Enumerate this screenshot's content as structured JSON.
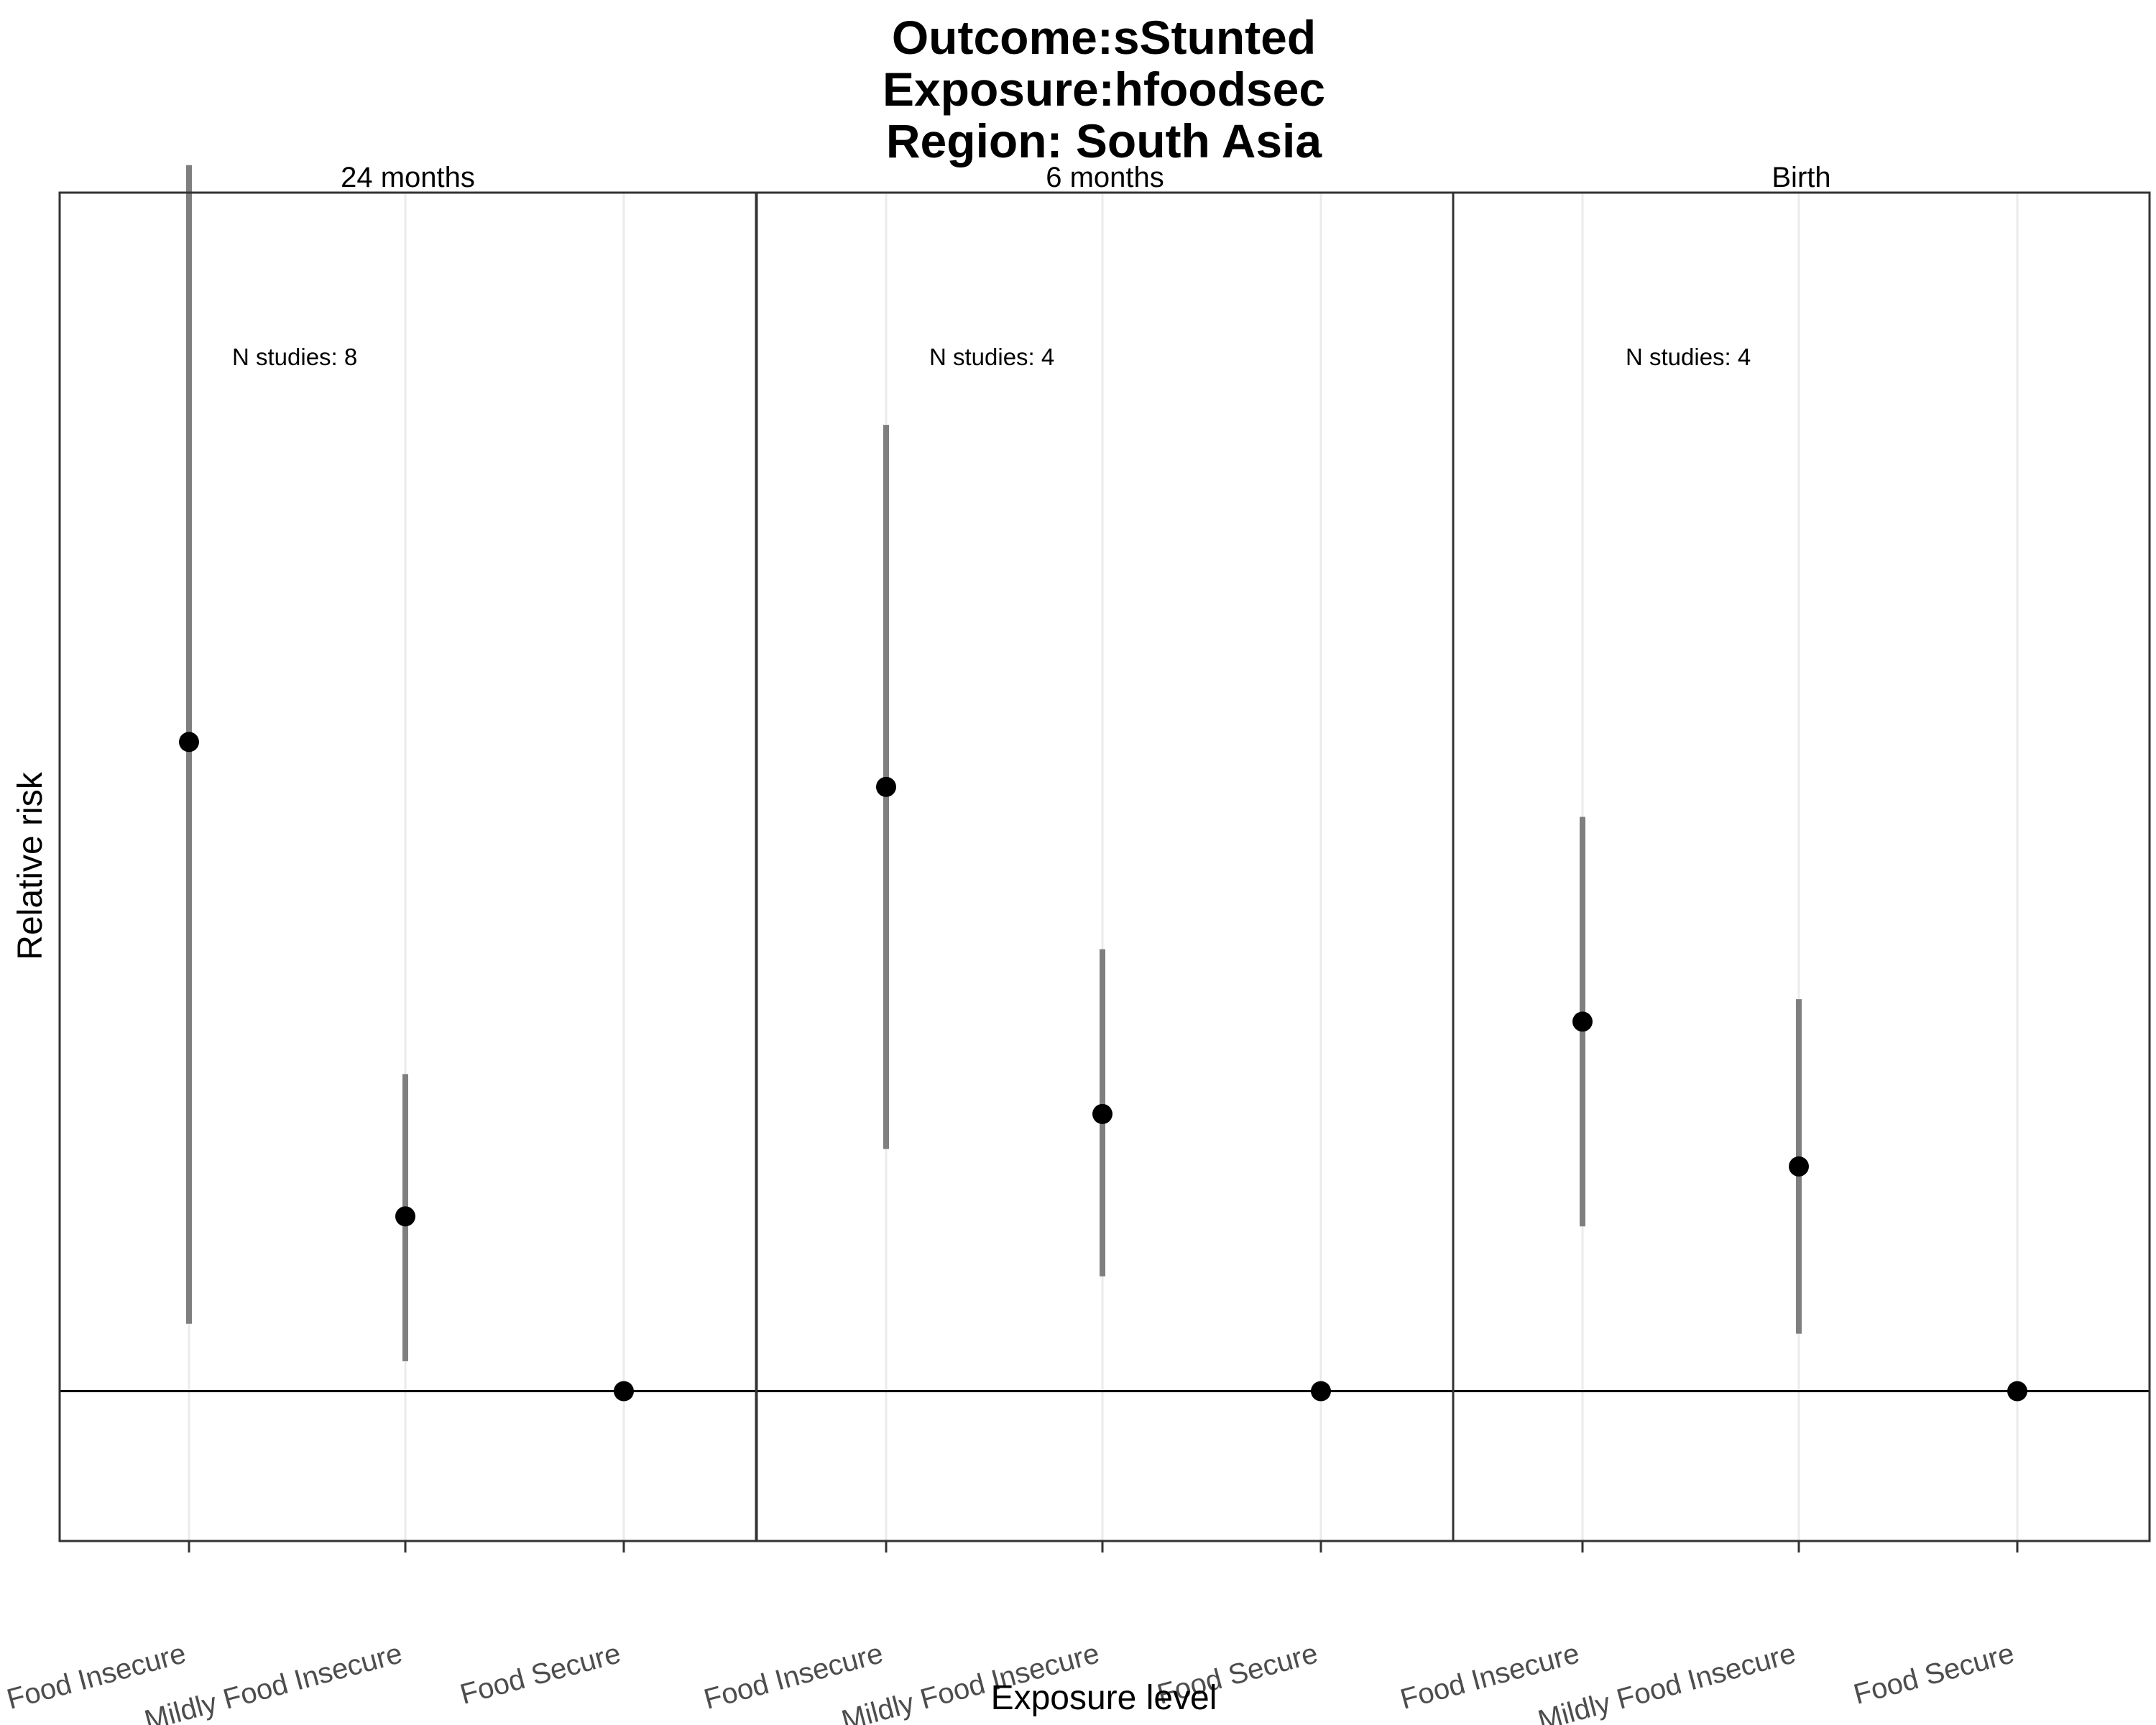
{
  "chart_data": {
    "type": "scatter",
    "title_lines": [
      "Outcome:sStunted",
      "Exposure:hfoodsec",
      "Region: South Asia"
    ],
    "xlabel": "Exposure level",
    "ylabel": "Relative risk",
    "categories": [
      "Food Insecure",
      "Mildly Food Insecure",
      "Food Secure"
    ],
    "reference_line": 1,
    "ylim": [
      0.94,
      1.48
    ],
    "y_tick_labels_shown": false,
    "grid": "vertical major lines only",
    "panels": [
      {
        "label": "24 months",
        "annotation": "N studies: 8",
        "points": [
          {
            "category": "Food Insecure",
            "estimate": 1.26,
            "ci_lower": 1.027,
            "ci_upper": 1.491
          },
          {
            "category": "Mildly Food Insecure",
            "estimate": 1.07,
            "ci_lower": 1.012,
            "ci_upper": 1.127
          },
          {
            "category": "Food Secure",
            "estimate": 1.0,
            "ci_lower": 1.0,
            "ci_upper": 1.0
          }
        ]
      },
      {
        "label": "6 months",
        "annotation": "N studies: 4",
        "points": [
          {
            "category": "Food Insecure",
            "estimate": 1.242,
            "ci_lower": 1.097,
            "ci_upper": 1.387
          },
          {
            "category": "Mildly Food Insecure",
            "estimate": 1.111,
            "ci_lower": 1.046,
            "ci_upper": 1.177
          },
          {
            "category": "Food Secure",
            "estimate": 1.0,
            "ci_lower": 1.0,
            "ci_upper": 1.0
          }
        ]
      },
      {
        "label": "Birth",
        "annotation": "N studies: 4",
        "points": [
          {
            "category": "Food Insecure",
            "estimate": 1.148,
            "ci_lower": 1.066,
            "ci_upper": 1.23
          },
          {
            "category": "Mildly Food Insecure",
            "estimate": 1.09,
            "ci_lower": 1.023,
            "ci_upper": 1.157
          },
          {
            "category": "Food Secure",
            "estimate": 1.0,
            "ci_lower": 1.0,
            "ci_upper": 1.0
          }
        ]
      }
    ],
    "colors": {
      "errorbar": "#7f7f7f",
      "point": "#000000",
      "panel_border": "#333333",
      "gridline": "#ebebeb",
      "reference_line": "#000000",
      "tick_text": "#4d4d4d"
    }
  }
}
